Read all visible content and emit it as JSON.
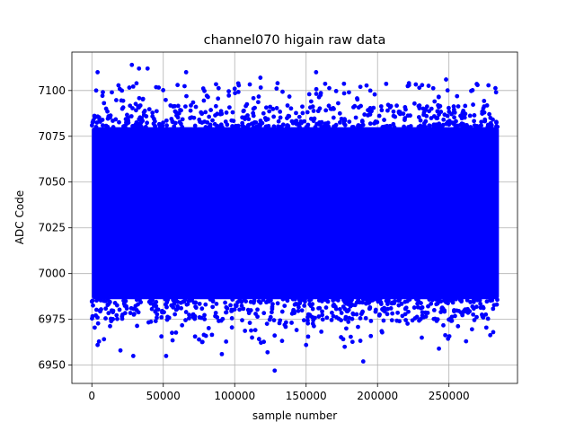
{
  "chart_data": {
    "type": "scatter",
    "title": "channel070 higain raw data",
    "xlabel": "sample number",
    "ylabel": "ADC Code",
    "xlim": [
      -14000,
      298000
    ],
    "ylim": [
      6940,
      7121
    ],
    "xticks": [
      0,
      50000,
      100000,
      150000,
      200000,
      250000
    ],
    "xtick_labels": [
      "0",
      "50000",
      "100000",
      "150000",
      "200000",
      "250000"
    ],
    "yticks": [
      6950,
      6975,
      7000,
      7025,
      7050,
      7075,
      7100
    ],
    "ytick_labels": [
      "6950",
      "6975",
      "7000",
      "7025",
      "7050",
      "7075",
      "7100"
    ],
    "grid": true,
    "color": "#0000ff",
    "band": {
      "x_start": 0,
      "x_end": 285000,
      "y_low": 6986,
      "y_high": 7080
    },
    "outliers": [
      {
        "x": 4000,
        "y": 7110
      },
      {
        "x": 28000,
        "y": 7114
      },
      {
        "x": 33000,
        "y": 7112
      },
      {
        "x": 39000,
        "y": 7112
      },
      {
        "x": 66000,
        "y": 7110
      },
      {
        "x": 157000,
        "y": 7110
      },
      {
        "x": 118000,
        "y": 7107
      },
      {
        "x": 248000,
        "y": 7106
      },
      {
        "x": 60000,
        "y": 7103
      },
      {
        "x": 130000,
        "y": 7104
      },
      {
        "x": 222000,
        "y": 7104
      },
      {
        "x": 270000,
        "y": 7103
      },
      {
        "x": 188000,
        "y": 7102
      },
      {
        "x": 3000,
        "y": 7100
      },
      {
        "x": 100000,
        "y": 7101
      },
      {
        "x": 14000,
        "y": 7099
      },
      {
        "x": 180000,
        "y": 7099
      },
      {
        "x": 283000,
        "y": 7099
      },
      {
        "x": 128000,
        "y": 6947
      },
      {
        "x": 190000,
        "y": 6952
      },
      {
        "x": 29000,
        "y": 6955
      },
      {
        "x": 52000,
        "y": 6955
      },
      {
        "x": 91000,
        "y": 6956
      },
      {
        "x": 20000,
        "y": 6958
      },
      {
        "x": 123000,
        "y": 6957
      },
      {
        "x": 243000,
        "y": 6959
      },
      {
        "x": 177000,
        "y": 6960
      },
      {
        "x": 262000,
        "y": 6963
      },
      {
        "x": 4000,
        "y": 6961
      },
      {
        "x": 150000,
        "y": 6961
      },
      {
        "x": 75000,
        "y": 6964
      },
      {
        "x": 231000,
        "y": 6965
      },
      {
        "x": 281000,
        "y": 6968
      }
    ]
  }
}
